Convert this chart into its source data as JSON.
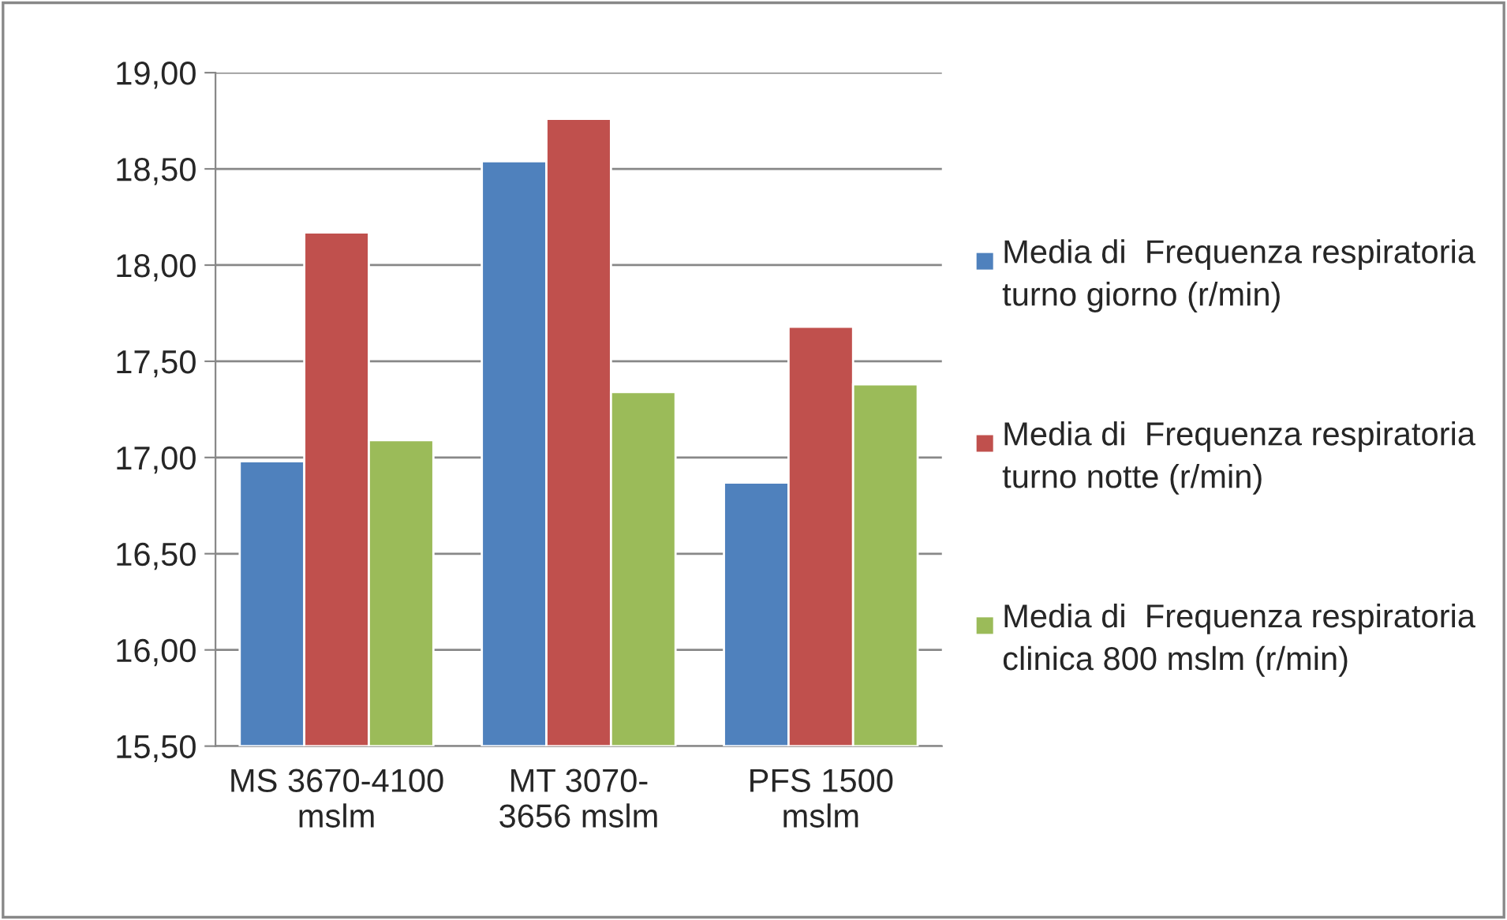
{
  "chart_data": {
    "type": "bar",
    "categories": [
      "MS 3670-4100\nmslm",
      "MT 3070-\n3656 mslm",
      "PFS 1500\nmslm"
    ],
    "series": [
      {
        "name": "Media di  Frequenza respiratoria turno giorno (r/min)",
        "color": "#4f81bd",
        "values": [
          16.98,
          18.54,
          16.87
        ]
      },
      {
        "name": "Media di  Frequenza respiratoria turno notte (r/min)",
        "color": "#c0504d",
        "values": [
          18.17,
          18.76,
          17.68
        ]
      },
      {
        "name": "Media di  Frequenza respiratoria clinica 800 mslm (r/min)",
        "color": "#9bbb59",
        "values": [
          17.09,
          17.34,
          17.38
        ]
      }
    ],
    "ylim": [
      15.5,
      19.0
    ],
    "yticks": [
      {
        "value": 15.5,
        "label": "15,50"
      },
      {
        "value": 16.0,
        "label": "16,00"
      },
      {
        "value": 16.5,
        "label": "16,50"
      },
      {
        "value": 17.0,
        "label": "17,00"
      },
      {
        "value": 17.5,
        "label": "17,50"
      },
      {
        "value": 18.0,
        "label": "18,00"
      },
      {
        "value": 18.5,
        "label": "18,50"
      },
      {
        "value": 19.0,
        "label": "19,00"
      }
    ],
    "grid": "y",
    "legend": "right"
  }
}
